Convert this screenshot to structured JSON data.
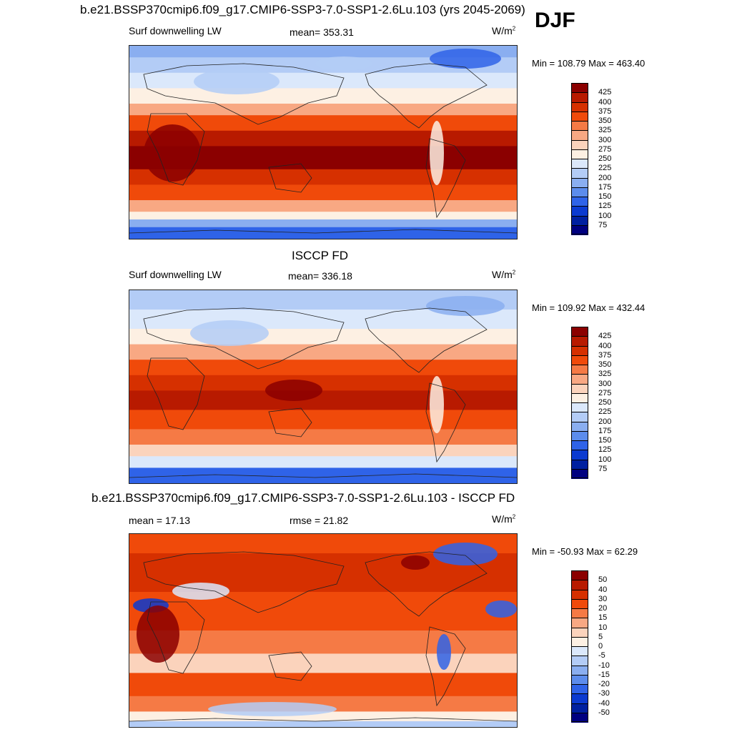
{
  "season": "DJF",
  "panels": [
    {
      "title": "b.e21.BSSP370cmip6.f09_g17.CMIP6-SSP3-7.0-SSP1-2.6Lu.103 (yrs 2045-2069)",
      "left_label": "Surf downwelling LW",
      "center_label": "mean= 353.31",
      "units": "W/m",
      "units_sup": "2",
      "minmax": "Min = 108.79 Max = 463.40"
    },
    {
      "title": "ISCCP FD",
      "left_label": "Surf downwelling LW",
      "center_label": "mean= 336.18",
      "units": "W/m",
      "units_sup": "2",
      "minmax": "Min = 109.92 Max = 432.44"
    },
    {
      "title": "b.e21.BSSP370cmip6.f09_g17.CMIP6-SSP3-7.0-SSP1-2.6Lu.103 - ISCCP FD",
      "left_label": "mean =  17.13",
      "center_label": "rmse =  21.82",
      "units": "W/m",
      "units_sup": "2",
      "minmax": "Min = -50.93 Max =  62.29"
    }
  ],
  "chart_data": [
    {
      "type": "heatmap",
      "title": "b.e21.BSSP370cmip6.f09_g17.CMIP6-SSP3-7.0-SSP1-2.6Lu.103 (yrs 2045-2069)",
      "variable": "Surf downwelling LW",
      "units": "W/m2",
      "mean": 353.31,
      "min": 108.79,
      "max": 463.4,
      "colorbar_levels": [
        425,
        400,
        375,
        350,
        325,
        300,
        275,
        250,
        225,
        200,
        175,
        150,
        125,
        100,
        75
      ],
      "colors": [
        "#8b0000",
        "#b81a00",
        "#d63000",
        "#f04a0a",
        "#f57a45",
        "#f8a883",
        "#fbd3bc",
        "#fdf0e3",
        "#dbe8fb",
        "#b3ccf6",
        "#8aaef0",
        "#5c8cec",
        "#2f63e8",
        "#0b3ad0",
        "#0020a0",
        "#000080"
      ]
    },
    {
      "type": "heatmap",
      "title": "ISCCP FD",
      "variable": "Surf downwelling LW",
      "units": "W/m2",
      "mean": 336.18,
      "min": 109.92,
      "max": 432.44,
      "colorbar_levels": [
        425,
        400,
        375,
        350,
        325,
        300,
        275,
        250,
        225,
        200,
        175,
        150,
        125,
        100,
        75
      ],
      "colors": [
        "#8b0000",
        "#b81a00",
        "#d63000",
        "#f04a0a",
        "#f57a45",
        "#f8a883",
        "#fbd3bc",
        "#fdf0e3",
        "#dbe8fb",
        "#b3ccf6",
        "#8aaef0",
        "#5c8cec",
        "#2f63e8",
        "#0b3ad0",
        "#0020a0",
        "#000080"
      ]
    },
    {
      "type": "heatmap",
      "title": "b.e21.BSSP370cmip6.f09_g17.CMIP6-SSP3-7.0-SSP1-2.6Lu.103 - ISCCP FD",
      "units": "W/m2",
      "mean": 17.13,
      "rmse": 21.82,
      "min": -50.93,
      "max": 62.29,
      "colorbar_levels": [
        50,
        40,
        30,
        20,
        15,
        10,
        5,
        0,
        -5,
        -10,
        -15,
        -20,
        -30,
        -40,
        -50
      ],
      "colors": [
        "#8b0000",
        "#b81a00",
        "#d63000",
        "#f04a0a",
        "#f57a45",
        "#f8a883",
        "#fbd3bc",
        "#fdf0e3",
        "#dbe8fb",
        "#b3ccf6",
        "#8aaef0",
        "#5c8cec",
        "#2f63e8",
        "#0b3ad0",
        "#0020a0",
        "#000080"
      ]
    }
  ]
}
